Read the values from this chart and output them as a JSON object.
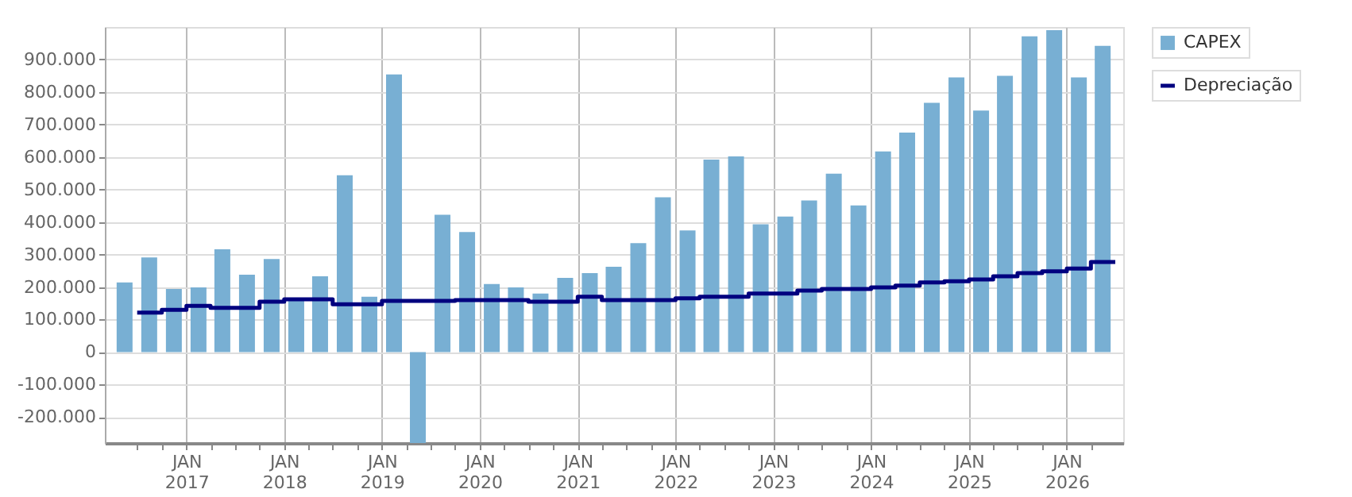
{
  "chart_data": {
    "type": "bar",
    "x": [
      "2016-05-15",
      "2016-08-15",
      "2016-11-15",
      "2017-02-15",
      "2017-05-15",
      "2017-08-15",
      "2017-11-15",
      "2018-02-15",
      "2018-05-15",
      "2018-08-15",
      "2018-11-15",
      "2019-02-15",
      "2019-05-15",
      "2019-08-15",
      "2019-11-15",
      "2020-02-15",
      "2020-05-15",
      "2020-08-15",
      "2020-11-15",
      "2021-02-15",
      "2021-05-15",
      "2021-08-15",
      "2021-11-15",
      "2022-02-15",
      "2022-05-15",
      "2022-08-15",
      "2022-11-15",
      "2023-02-15",
      "2023-05-15",
      "2023-08-15",
      "2023-11-15",
      "2024-02-15",
      "2024-05-15",
      "2024-08-15",
      "2024-11-15",
      "2025-02-15",
      "2025-05-15",
      "2025-08-15",
      "2025-11-15",
      "2026-02-15",
      "2026-05-15"
    ],
    "series": [
      {
        "name": "CAPEX",
        "color": "#78afd3",
        "values": [
          214000,
          291000,
          194000,
          199000,
          316000,
          238000,
          286000,
          160000,
          233000,
          544000,
          170000,
          854000,
          -280000,
          422000,
          369000,
          209000,
          199000,
          180000,
          228000,
          243000,
          262000,
          335000,
          476000,
          374000,
          592000,
          602000,
          393000,
          417000,
          466000,
          549000,
          451000,
          617000,
          675000,
          767000,
          845000,
          743000,
          850000,
          971000,
          990000,
          845000,
          942000
        ]
      },
      {
        "name": "Depreciação",
        "type": "step",
        "color": "#00007f",
        "x": [
          "2016-07-01",
          "2016-10-01",
          "2017-01-01",
          "2017-04-01",
          "2017-07-01",
          "2017-10-01",
          "2018-01-01",
          "2018-04-01",
          "2018-07-01",
          "2018-10-01",
          "2019-01-01",
          "2019-04-01",
          "2019-07-01",
          "2019-10-01",
          "2020-01-01",
          "2020-04-01",
          "2020-07-01",
          "2020-10-01",
          "2021-01-01",
          "2021-04-01",
          "2021-07-01",
          "2021-10-01",
          "2022-01-01",
          "2022-04-01",
          "2022-07-01",
          "2022-10-01",
          "2023-01-01",
          "2023-04-01",
          "2023-07-01",
          "2023-10-01",
          "2024-01-01",
          "2024-04-01",
          "2024-07-01",
          "2024-10-01",
          "2025-01-01",
          "2025-04-01",
          "2025-07-01",
          "2025-10-01",
          "2026-01-01",
          "2026-04-01",
          "2026-07-01"
        ],
        "values": [
          121000,
          130000,
          142000,
          136000,
          136000,
          155000,
          162000,
          162000,
          147000,
          147000,
          157000,
          157000,
          157000,
          160000,
          160000,
          160000,
          155000,
          155000,
          170000,
          160000,
          160000,
          160000,
          165000,
          170000,
          170000,
          180000,
          180000,
          189000,
          194000,
          194000,
          199000,
          204000,
          214000,
          218000,
          223000,
          233000,
          243000,
          248000,
          257000,
          277000,
          277000
        ]
      }
    ],
    "xlim": [
      "2016-04-01",
      "2026-07-01"
    ],
    "xticks": [
      {
        "value": "2016-07-01",
        "label": null
      },
      {
        "value": "2016-10-01",
        "label": null
      },
      {
        "value": "2017-01-01",
        "label": "JAN 2017"
      },
      {
        "value": "2017-04-01",
        "label": null
      },
      {
        "value": "2017-07-01",
        "label": null
      },
      {
        "value": "2017-10-01",
        "label": null
      },
      {
        "value": "2018-01-01",
        "label": "JAN 2018"
      },
      {
        "value": "2018-04-01",
        "label": null
      },
      {
        "value": "2018-07-01",
        "label": null
      },
      {
        "value": "2018-10-01",
        "label": null
      },
      {
        "value": "2019-01-01",
        "label": "JAN 2019"
      },
      {
        "value": "2019-04-01",
        "label": null
      },
      {
        "value": "2019-07-01",
        "label": null
      },
      {
        "value": "2019-10-01",
        "label": null
      },
      {
        "value": "2020-01-01",
        "label": "JAN 2020"
      },
      {
        "value": "2020-04-01",
        "label": null
      },
      {
        "value": "2020-07-01",
        "label": null
      },
      {
        "value": "2020-10-01",
        "label": null
      },
      {
        "value": "2021-01-01",
        "label": "JAN 2021"
      },
      {
        "value": "2021-04-01",
        "label": null
      },
      {
        "value": "2021-07-01",
        "label": null
      },
      {
        "value": "2021-10-01",
        "label": null
      },
      {
        "value": "2022-01-01",
        "label": "JAN 2022"
      },
      {
        "value": "2022-04-01",
        "label": null
      },
      {
        "value": "2022-07-01",
        "label": null
      },
      {
        "value": "2022-10-01",
        "label": null
      },
      {
        "value": "2023-01-01",
        "label": "JAN 2023"
      },
      {
        "value": "2023-04-01",
        "label": null
      },
      {
        "value": "2023-07-01",
        "label": null
      },
      {
        "value": "2023-10-01",
        "label": null
      },
      {
        "value": "2024-01-01",
        "label": "JAN 2024"
      },
      {
        "value": "2024-04-01",
        "label": null
      },
      {
        "value": "2024-07-01",
        "label": null
      },
      {
        "value": "2024-10-01",
        "label": null
      },
      {
        "value": "2025-01-01",
        "label": "JAN 2025"
      },
      {
        "value": "2025-04-01",
        "label": null
      },
      {
        "value": "2025-07-01",
        "label": null
      },
      {
        "value": "2025-10-01",
        "label": null
      },
      {
        "value": "2026-01-01",
        "label": "JAN 2026"
      },
      {
        "value": "2026-04-01",
        "label": null
      }
    ],
    "ylim": [
      -280000,
      1000000
    ],
    "yticks": [
      {
        "value": -200000,
        "label": "-200.000"
      },
      {
        "value": -100000,
        "label": "-100.000"
      },
      {
        "value": 0,
        "label": "0"
      },
      {
        "value": 100000,
        "label": "100.000"
      },
      {
        "value": 200000,
        "label": "200.000"
      },
      {
        "value": 300000,
        "label": "300.000"
      },
      {
        "value": 400000,
        "label": "400.000"
      },
      {
        "value": 500000,
        "label": "500.000"
      },
      {
        "value": 600000,
        "label": "600.000"
      },
      {
        "value": 700000,
        "label": "700.000"
      },
      {
        "value": 800000,
        "label": "800.000"
      },
      {
        "value": 900000,
        "label": "900.000"
      }
    ],
    "grid": true,
    "legend": "top right"
  }
}
